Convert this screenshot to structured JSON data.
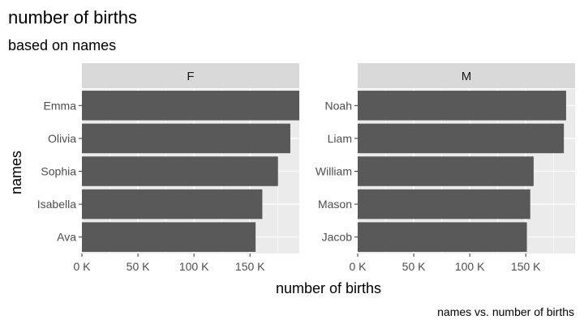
{
  "chart_data": {
    "type": "bar",
    "orientation": "horizontal",
    "title": "number of births",
    "subtitle": "based on names",
    "xlabel": "number of births",
    "ylabel": "names",
    "caption": "names vs. number of births",
    "xlim": [
      0,
      194000
    ],
    "x_ticks": [
      0,
      50000,
      100000,
      150000
    ],
    "x_tick_labels": [
      "0 K",
      "50 K",
      "100 K",
      "150 K"
    ],
    "grid": true,
    "colors": {
      "bar": "#595959",
      "panel_bg": "#ebebeb",
      "strip_bg": "#d9d9d9",
      "grid": "#ffffff"
    },
    "facets": [
      {
        "label": "F",
        "categories": [
          "Emma",
          "Olivia",
          "Sophia",
          "Isabella",
          "Ava"
        ],
        "values": [
          194000,
          186000,
          175000,
          161000,
          155000
        ]
      },
      {
        "label": "M",
        "categories": [
          "Noah",
          "Liam",
          "William",
          "Mason",
          "Jacob"
        ],
        "values": [
          186000,
          184000,
          157000,
          154000,
          151000
        ]
      }
    ]
  }
}
